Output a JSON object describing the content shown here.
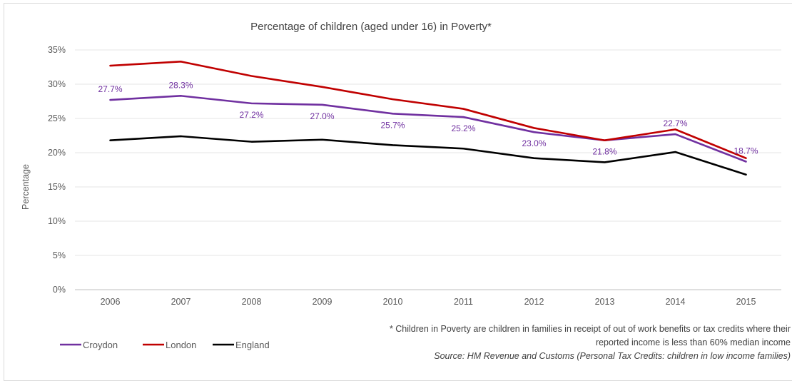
{
  "chart_data": {
    "type": "line",
    "title": "Percentage of children (aged under 16) in Poverty*",
    "ylabel": "Percentage",
    "xlabel": "",
    "x": [
      "2006",
      "2007",
      "2008",
      "2009",
      "2010",
      "2011",
      "2012",
      "2013",
      "2014",
      "2015"
    ],
    "ylim": [
      0,
      35
    ],
    "yticks": [
      "0%",
      "5%",
      "10%",
      "15%",
      "20%",
      "25%",
      "30%",
      "35%"
    ],
    "grid": true,
    "legend_position": "bottom-left",
    "series": [
      {
        "name": "Croydon",
        "color": "#7030a0",
        "values": [
          27.7,
          28.3,
          27.2,
          27.0,
          25.7,
          25.2,
          23.0,
          21.8,
          22.7,
          18.7
        ],
        "labels": [
          "27.7%",
          "28.3%",
          "27.2%",
          "27.0%",
          "25.7%",
          "25.2%",
          "23.0%",
          "21.8%",
          "22.7%",
          "18.7%"
        ]
      },
      {
        "name": "London",
        "color": "#c00000",
        "values": [
          32.7,
          33.3,
          31.2,
          29.6,
          27.8,
          26.4,
          23.6,
          21.8,
          23.4,
          19.2
        ]
      },
      {
        "name": "England",
        "color": "#000000",
        "values": [
          21.8,
          22.4,
          21.6,
          21.9,
          21.1,
          20.6,
          19.2,
          18.6,
          20.1,
          16.8
        ]
      }
    ],
    "footnote": "* Children in Poverty are children in families in receipt of out of work benefits or tax credits where their",
    "footnote2": "reported income is less than 60% median income",
    "source": "Source: HM Revenue and Customs (Personal Tax Credits: children in low income families)"
  }
}
